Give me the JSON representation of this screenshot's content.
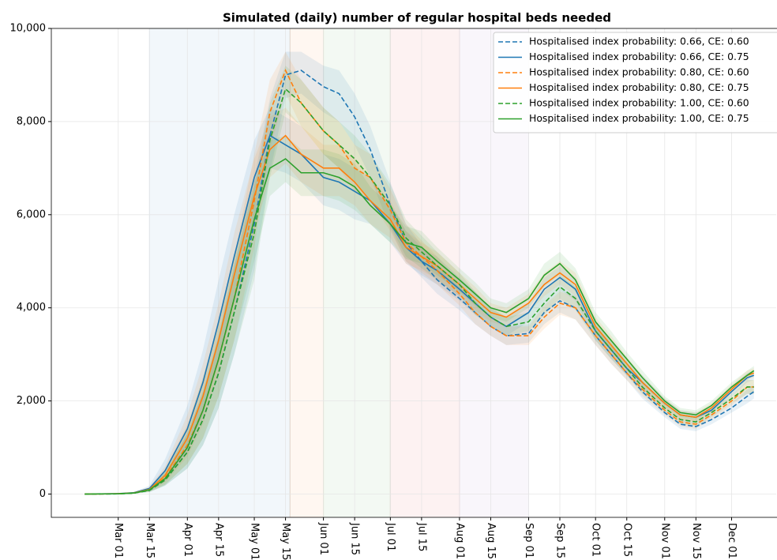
{
  "chart_data": {
    "type": "line",
    "title": "Simulated (daily) number of regular hospital beds needed",
    "x": [
      "Feb 15",
      "Mar 01",
      "Mar 08",
      "Mar 15",
      "Mar 22",
      "Apr 01",
      "Apr 08",
      "Apr 15",
      "Apr 22",
      "May 01",
      "May 08",
      "May 15",
      "May 22",
      "Jun 01",
      "Jun 08",
      "Jun 15",
      "Jun 22",
      "Jul 01",
      "Jul 08",
      "Jul 15",
      "Jul 22",
      "Aug 01",
      "Aug 08",
      "Aug 15",
      "Aug 22",
      "Sep 01",
      "Sep 08",
      "Sep 15",
      "Sep 22",
      "Oct 01",
      "Oct 08",
      "Oct 15",
      "Oct 22",
      "Nov 01",
      "Nov 08",
      "Nov 15",
      "Nov 22",
      "Dec 01",
      "Dec 08",
      "Dec 11"
    ],
    "xlim": [
      "Jan 31",
      "Dec 21"
    ],
    "xticks": [
      "Mar 01",
      "Mar 15",
      "Apr 01",
      "Apr 15",
      "May 01",
      "May 15",
      "Jun 01",
      "Jun 15",
      "Jul 01",
      "Jul 15",
      "Aug 01",
      "Aug 15",
      "Sep 01",
      "Sep 15",
      "Oct 01",
      "Oct 15",
      "Nov 01",
      "Nov 15",
      "Dec 01"
    ],
    "ylim": [
      -500,
      10000
    ],
    "yticks": [
      0,
      {
        "value": 2000,
        "label": "2,000"
      },
      {
        "value": 4000,
        "label": "4,000"
      },
      {
        "value": 6000,
        "label": "6,000"
      },
      {
        "value": 8000,
        "label": "8,000"
      },
      {
        "value": 10000,
        "label": "10,000"
      }
    ],
    "grid": true,
    "legend": "upper right",
    "regions": [
      {
        "start": "Mar 15",
        "end": "May 17",
        "color": "#1f77b4"
      },
      {
        "start": "May 17",
        "end": "Jun 01",
        "color": "#ff7f0e"
      },
      {
        "start": "Jun 01",
        "end": "Jul 01",
        "color": "#2ca02c"
      },
      {
        "start": "Jul 01",
        "end": "Aug 01",
        "color": "#d62728"
      },
      {
        "start": "Aug 01",
        "end": "Sep 01",
        "color": "#9467bd"
      }
    ],
    "series": [
      {
        "name": "Hospitalised index probability: 0.66, CE: 0.60",
        "color": "#1f77b4",
        "dashed": true,
        "values": [
          0,
          5,
          20,
          80,
          300,
          900,
          1600,
          2600,
          3900,
          5800,
          7700,
          9000,
          9100,
          8750,
          8600,
          8100,
          7400,
          6200,
          5400,
          5000,
          4600,
          4200,
          3900,
          3600,
          3400,
          3450,
          3900,
          4150,
          4000,
          3400,
          3000,
          2600,
          2200,
          1750,
          1500,
          1450,
          1600,
          1850,
          2100,
          2200
        ],
        "lower": [
          0,
          2,
          10,
          40,
          180,
          550,
          1050,
          1850,
          3000,
          4800,
          6900,
          8500,
          8600,
          8200,
          8000,
          7500,
          6800,
          5700,
          5000,
          4650,
          4300,
          3950,
          3650,
          3400,
          3200,
          3250,
          3650,
          3900,
          3750,
          3200,
          2800,
          2450,
          2050,
          1650,
          1400,
          1350,
          1500,
          1750,
          1950,
          2050
        ],
        "upper": [
          0,
          8,
          30,
          130,
          450,
          1300,
          2200,
          3400,
          4900,
          6800,
          8500,
          9500,
          9500,
          9200,
          9100,
          8600,
          7900,
          6700,
          5800,
          5350,
          4900,
          4450,
          4150,
          3800,
          3600,
          3650,
          4150,
          4400,
          4250,
          3600,
          3200,
          2750,
          2350,
          1850,
          1600,
          1550,
          1700,
          1950,
          2250,
          2350
        ]
      },
      {
        "name": "Hospitalised index probability: 0.66, CE: 0.75",
        "color": "#1f77b4",
        "dashed": false,
        "values": [
          0,
          10,
          30,
          120,
          500,
          1400,
          2400,
          3700,
          5100,
          6800,
          7700,
          7500,
          7300,
          6800,
          6700,
          6500,
          6300,
          5800,
          5300,
          5000,
          4800,
          4400,
          4100,
          3800,
          3600,
          3900,
          4400,
          4650,
          4400,
          3500,
          3100,
          2700,
          2400,
          1950,
          1700,
          1650,
          1800,
          2200,
          2500,
          2550
        ],
        "lower": [
          0,
          5,
          15,
          70,
          300,
          900,
          1700,
          2900,
          4200,
          5900,
          7000,
          6900,
          6700,
          6200,
          6100,
          5900,
          5800,
          5400,
          4950,
          4700,
          4500,
          4150,
          3850,
          3600,
          3400,
          3700,
          4150,
          4400,
          4150,
          3300,
          2900,
          2550,
          2250,
          1850,
          1600,
          1550,
          1700,
          2100,
          2400,
          2450
        ],
        "upper": [
          0,
          15,
          45,
          180,
          750,
          1900,
          3100,
          4600,
          6000,
          7600,
          8300,
          8100,
          7900,
          7300,
          7200,
          7000,
          6800,
          6200,
          5650,
          5300,
          5100,
          4650,
          4350,
          4000,
          3800,
          4100,
          4650,
          4900,
          4650,
          3700,
          3300,
          2850,
          2550,
          2050,
          1800,
          1750,
          1900,
          2300,
          2600,
          2650
        ]
      },
      {
        "name": "Hospitalised index probability: 0.80, CE: 0.60",
        "color": "#ff7f0e",
        "dashed": true,
        "values": [
          0,
          6,
          22,
          90,
          350,
          1050,
          1800,
          2900,
          4200,
          6300,
          8200,
          9100,
          8400,
          7800,
          7500,
          7000,
          6800,
          6100,
          5400,
          5100,
          4800,
          4300,
          3900,
          3600,
          3400,
          3400,
          3800,
          4100,
          4000,
          3400,
          3000,
          2600,
          2250,
          1800,
          1550,
          1500,
          1700,
          2000,
          2300,
          2300
        ],
        "lower": [
          0,
          3,
          10,
          50,
          200,
          650,
          1200,
          2100,
          3300,
          5300,
          7400,
          8600,
          7900,
          7300,
          7000,
          6500,
          6300,
          5650,
          5000,
          4750,
          4500,
          4050,
          3650,
          3400,
          3200,
          3200,
          3550,
          3850,
          3750,
          3200,
          2800,
          2450,
          2100,
          1700,
          1450,
          1400,
          1600,
          1900,
          2150,
          2150
        ],
        "upper": [
          0,
          10,
          35,
          140,
          550,
          1500,
          2500,
          3700,
          5100,
          7300,
          8900,
          9500,
          8900,
          8300,
          8000,
          7500,
          7300,
          6550,
          5800,
          5450,
          5100,
          4550,
          4150,
          3800,
          3600,
          3600,
          4050,
          4350,
          4250,
          3600,
          3200,
          2750,
          2400,
          1900,
          1650,
          1600,
          1800,
          2100,
          2450,
          2450
        ]
      },
      {
        "name": "Hospitalised index probability: 0.80, CE: 0.75",
        "color": "#ff7f0e",
        "dashed": false,
        "values": [
          0,
          8,
          25,
          100,
          400,
          1200,
          2100,
          3300,
          4700,
          6400,
          7400,
          7700,
          7300,
          7000,
          7000,
          6700,
          6300,
          5900,
          5300,
          5100,
          4900,
          4500,
          4200,
          3900,
          3800,
          4100,
          4500,
          4750,
          4500,
          3600,
          3200,
          2800,
          2400,
          1950,
          1700,
          1650,
          1850,
          2250,
          2550,
          2600
        ],
        "lower": [
          0,
          4,
          12,
          60,
          250,
          800,
          1500,
          2600,
          3900,
          5600,
          6800,
          7100,
          6700,
          6400,
          6400,
          6200,
          5800,
          5500,
          4950,
          4800,
          4600,
          4250,
          3950,
          3700,
          3600,
          3900,
          4250,
          4500,
          4250,
          3400,
          3000,
          2650,
          2250,
          1850,
          1600,
          1550,
          1750,
          2150,
          2450,
          2500
        ],
        "upper": [
          0,
          12,
          40,
          150,
          600,
          1700,
          2800,
          4100,
          5600,
          7200,
          8100,
          8300,
          7900,
          7500,
          7500,
          7200,
          6800,
          6300,
          5650,
          5400,
          5200,
          4750,
          4450,
          4100,
          4000,
          4300,
          4750,
          5000,
          4750,
          3800,
          3400,
          2950,
          2550,
          2050,
          1800,
          1750,
          1950,
          2350,
          2650,
          2700
        ]
      },
      {
        "name": "Hospitalised index probability: 1.00, CE: 0.60",
        "color": "#2ca02c",
        "dashed": true,
        "values": [
          0,
          5,
          20,
          80,
          300,
          900,
          1600,
          2600,
          3900,
          5600,
          7600,
          8700,
          8400,
          7800,
          7500,
          7200,
          6800,
          6200,
          5500,
          5200,
          4900,
          4500,
          4100,
          3800,
          3600,
          3700,
          4100,
          4450,
          4200,
          3500,
          3100,
          2700,
          2300,
          1850,
          1600,
          1550,
          1750,
          2050,
          2300,
          2300
        ],
        "lower": [
          0,
          2,
          10,
          40,
          180,
          550,
          1050,
          1850,
          3000,
          4600,
          6800,
          8200,
          7900,
          7300,
          7000,
          6700,
          6300,
          5750,
          5100,
          4850,
          4600,
          4250,
          3850,
          3600,
          3400,
          3500,
          3850,
          4200,
          3950,
          3300,
          2900,
          2550,
          2150,
          1750,
          1500,
          1450,
          1650,
          1950,
          2150,
          2150
        ],
        "upper": [
          0,
          8,
          30,
          130,
          450,
          1300,
          2200,
          3400,
          4900,
          6600,
          8400,
          9200,
          8900,
          8300,
          8000,
          7700,
          7300,
          6650,
          5900,
          5550,
          5200,
          4750,
          4350,
          4000,
          3800,
          3900,
          4350,
          4700,
          4450,
          3700,
          3300,
          2850,
          2450,
          1950,
          1700,
          1650,
          1850,
          2150,
          2450,
          2450
        ]
      },
      {
        "name": "Hospitalised index probability: 1.00, CE: 0.75",
        "color": "#2ca02c",
        "dashed": false,
        "values": [
          0,
          6,
          22,
          90,
          330,
          1000,
          1800,
          2900,
          4200,
          5900,
          7000,
          7200,
          6900,
          6900,
          6800,
          6600,
          6200,
          5800,
          5400,
          5300,
          5000,
          4600,
          4300,
          4000,
          3900,
          4200,
          4700,
          4950,
          4600,
          3700,
          3300,
          2900,
          2500,
          2000,
          1750,
          1700,
          1900,
          2300,
          2550,
          2650
        ],
        "lower": [
          0,
          3,
          10,
          50,
          200,
          650,
          1200,
          2100,
          3300,
          5000,
          6400,
          6700,
          6400,
          6400,
          6300,
          6100,
          5800,
          5400,
          5050,
          4950,
          4700,
          4350,
          4050,
          3800,
          3700,
          4000,
          4450,
          4700,
          4350,
          3500,
          3100,
          2750,
          2350,
          1900,
          1650,
          1600,
          1800,
          2200,
          2450,
          2550
        ],
        "upper": [
          0,
          10,
          35,
          140,
          500,
          1450,
          2500,
          3700,
          5100,
          6700,
          7600,
          7700,
          7400,
          7400,
          7300,
          7100,
          6600,
          6200,
          5750,
          5650,
          5300,
          4850,
          4550,
          4200,
          4100,
          4400,
          4950,
          5200,
          4850,
          3900,
          3500,
          3050,
          2650,
          2100,
          1850,
          1800,
          2000,
          2400,
          2650,
          2750
        ]
      }
    ]
  }
}
